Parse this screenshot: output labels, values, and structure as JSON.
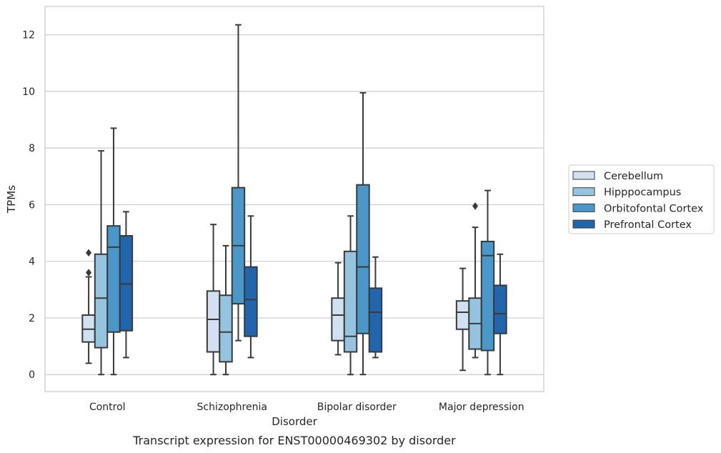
{
  "chart_data": {
    "type": "boxplot",
    "caption": "Transcript expression for ENST00000469302 by disorder",
    "xlabel": "Disorder",
    "ylabel": "TPMs",
    "ylim": [
      -0.6,
      13.0
    ],
    "yticks": [
      0,
      2,
      4,
      6,
      8,
      10,
      12
    ],
    "grid": "horizontal",
    "legend_position": "right",
    "categories": [
      "Control",
      "Schizophrenia",
      "Bipolar disorder",
      "Major depression"
    ],
    "series": [
      {
        "name": "Cerebellum",
        "color": "#d0e1f2",
        "boxes": [
          {
            "whislo": 0.4,
            "q1": 1.15,
            "med": 1.6,
            "q3": 2.1,
            "whishi": 3.45,
            "fliers": [
              3.6,
              4.3
            ]
          },
          {
            "whislo": 0.0,
            "q1": 0.8,
            "med": 1.95,
            "q3": 2.95,
            "whishi": 5.3,
            "fliers": []
          },
          {
            "whislo": 0.7,
            "q1": 1.2,
            "med": 2.1,
            "q3": 2.7,
            "whishi": 3.95,
            "fliers": []
          },
          {
            "whislo": 0.15,
            "q1": 1.6,
            "med": 2.2,
            "q3": 2.6,
            "whishi": 3.75,
            "fliers": []
          }
        ]
      },
      {
        "name": "Hipppocampus",
        "color": "#94c4df",
        "boxes": [
          {
            "whislo": 0.0,
            "q1": 0.95,
            "med": 2.7,
            "q3": 4.25,
            "whishi": 7.9,
            "fliers": []
          },
          {
            "whislo": 0.0,
            "q1": 0.45,
            "med": 1.5,
            "q3": 2.8,
            "whishi": 4.55,
            "fliers": []
          },
          {
            "whislo": 0.0,
            "q1": 0.8,
            "med": 1.35,
            "q3": 4.35,
            "whishi": 5.6,
            "fliers": []
          },
          {
            "whislo": 0.6,
            "q1": 0.9,
            "med": 1.8,
            "q3": 2.7,
            "whishi": 5.2,
            "fliers": [
              5.95
            ]
          }
        ]
      },
      {
        "name": "Orbitofontal Cortex",
        "color": "#4a98c9",
        "boxes": [
          {
            "whislo": 0.0,
            "q1": 1.5,
            "med": 4.5,
            "q3": 5.25,
            "whishi": 8.7,
            "fliers": []
          },
          {
            "whislo": 1.2,
            "q1": 2.5,
            "med": 4.55,
            "q3": 6.6,
            "whishi": 12.35,
            "fliers": []
          },
          {
            "whislo": 0.0,
            "q1": 1.45,
            "med": 3.8,
            "q3": 6.7,
            "whishi": 9.95,
            "fliers": []
          },
          {
            "whislo": 0.0,
            "q1": 0.85,
            "med": 4.2,
            "q3": 4.7,
            "whishi": 6.5,
            "fliers": []
          }
        ]
      },
      {
        "name": "Prefrontal Cortex",
        "color": "#2166ac",
        "boxes": [
          {
            "whislo": 0.6,
            "q1": 1.55,
            "med": 3.2,
            "q3": 4.9,
            "whishi": 5.75,
            "fliers": []
          },
          {
            "whislo": 0.6,
            "q1": 1.35,
            "med": 2.65,
            "q3": 3.8,
            "whishi": 5.6,
            "fliers": []
          },
          {
            "whislo": 0.6,
            "q1": 0.8,
            "med": 2.2,
            "q3": 3.05,
            "whishi": 4.15,
            "fliers": []
          },
          {
            "whislo": 0.0,
            "q1": 1.45,
            "med": 2.15,
            "q3": 3.15,
            "whishi": 4.25,
            "fliers": []
          }
        ]
      }
    ]
  }
}
